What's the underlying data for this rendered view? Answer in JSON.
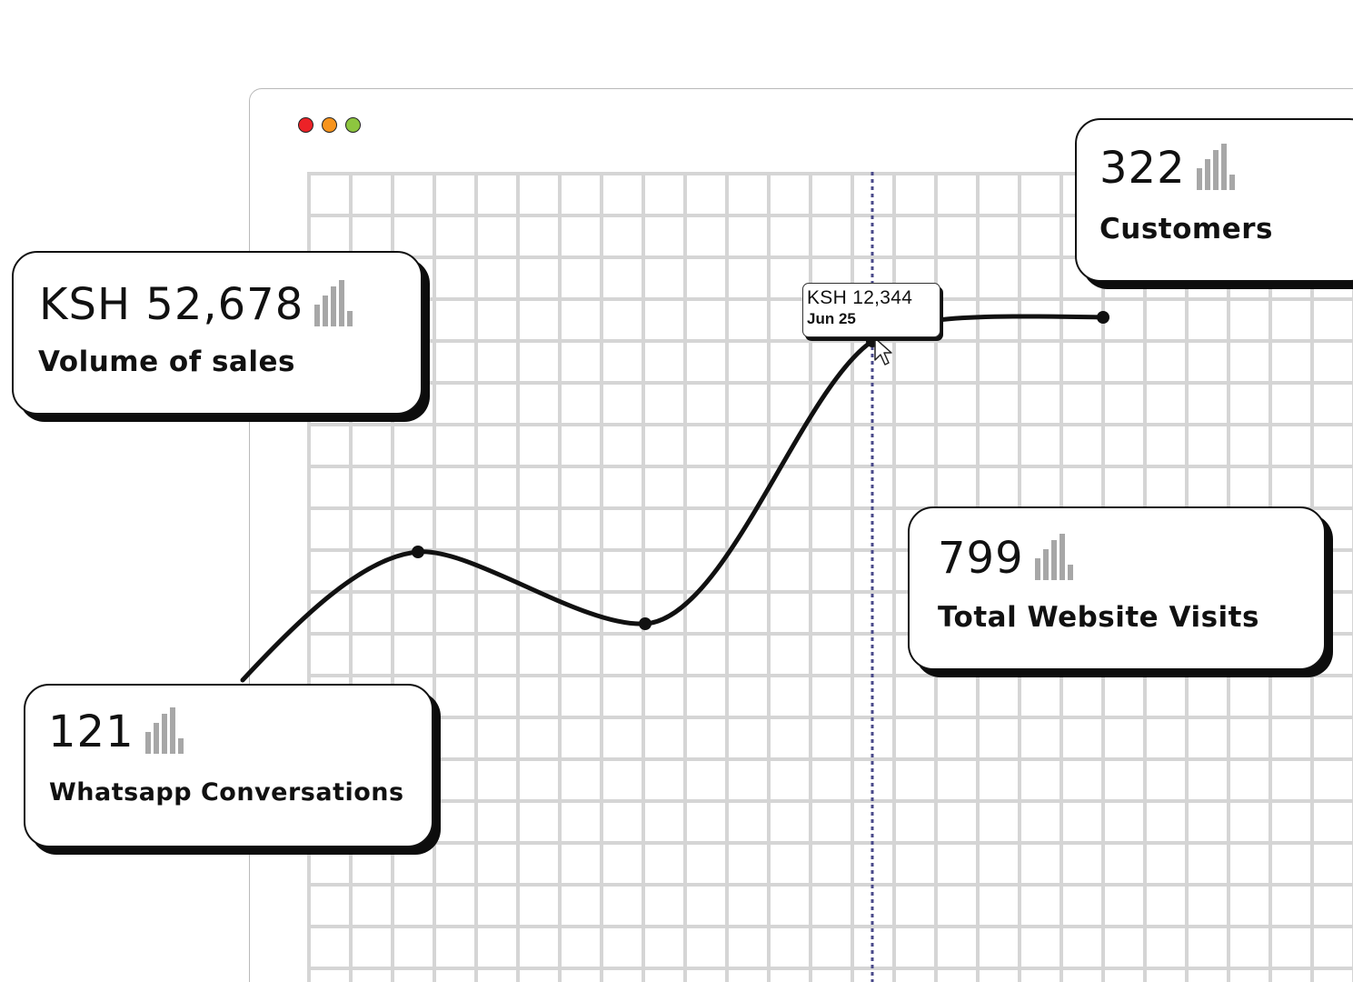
{
  "colors": {
    "close": "#ec2227",
    "minimize": "#f7941d",
    "maximize": "#8dc63f",
    "line": "#111111",
    "grid": "#d5d5d5",
    "cursor_line": "#4a4a8a",
    "bar_icon": "#a7a7a7"
  },
  "window": {
    "controls": [
      "close-dot",
      "minimize-dot",
      "maximize-dot"
    ]
  },
  "tooltip": {
    "value": "KSH 12,344",
    "date": "Jun 25"
  },
  "cards": {
    "sales": {
      "value": "KSH 52,678",
      "label": "Volume of sales",
      "icon": "bar-chart-icon"
    },
    "customers": {
      "value": "322",
      "label": "Customers",
      "icon": "bar-chart-icon"
    },
    "visits": {
      "value": "799",
      "label": "Total Website Visits",
      "icon": "bar-chart-icon"
    },
    "whatsapp": {
      "value": "121",
      "label": "Whatsapp Conversations",
      "icon": "bar-chart-icon"
    }
  },
  "chart_data": {
    "type": "line",
    "smooth": true,
    "grid": true,
    "x": [
      "",
      "",
      "",
      "Jun 25",
      ""
    ],
    "values": [
      null,
      null,
      null,
      12344,
      null
    ],
    "highlighted_point": {
      "label": "Jun 25",
      "value": "KSH 12,344"
    }
  }
}
